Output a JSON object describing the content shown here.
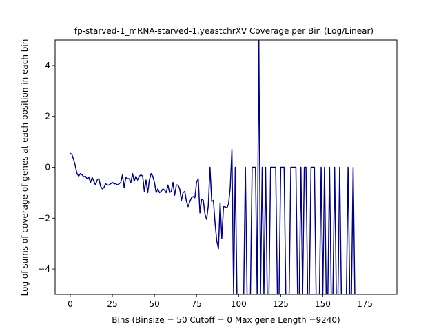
{
  "chart_data": {
    "type": "line",
    "title": "fp-starved-1_mRNA-starved-1.yeastchrXV Coverage per Bin (Log/Linear)",
    "xlabel": "Bins  (Binsize = 50 Cutoff = 0 Max gene Length =9240)",
    "ylabel": "Log of sums of coverage of genes at each position in each bin",
    "xlim": [
      -9,
      194
    ],
    "ylim": [
      -5,
      5
    ],
    "xticks": [
      0,
      25,
      50,
      75,
      100,
      125,
      150,
      175
    ],
    "yticks": [
      -4,
      -2,
      0,
      2,
      4
    ],
    "grid": false,
    "line_color": "#00008b",
    "series": [
      {
        "values": [
          0.55,
          0.5,
          0.3,
          0.05,
          -0.25,
          -0.35,
          -0.25,
          -0.3,
          -0.38,
          -0.35,
          -0.45,
          -0.4,
          -0.6,
          -0.4,
          -0.55,
          -0.7,
          -0.5,
          -0.45,
          -0.75,
          -0.85,
          -0.8,
          -0.65,
          -0.7,
          -0.7,
          -0.65,
          -0.6,
          -0.65,
          -0.65,
          -0.7,
          -0.65,
          -0.6,
          -0.3,
          -0.8,
          -0.4,
          -0.45,
          -0.45,
          -0.6,
          -0.25,
          -0.55,
          -0.35,
          -0.5,
          -0.35,
          -0.3,
          -0.35,
          -0.95,
          -0.5,
          -1.0,
          -0.5,
          -0.25,
          -0.35,
          -0.6,
          -1.0,
          -0.85,
          -1.0,
          -0.95,
          -0.85,
          -0.9,
          -1.0,
          -0.7,
          -1.0,
          -0.95,
          -0.6,
          -1.1,
          -0.7,
          -0.7,
          -0.85,
          -1.3,
          -1.0,
          -0.95,
          -1.35,
          -1.55,
          -1.35,
          -1.2,
          -1.15,
          -1.2,
          -0.6,
          -0.45,
          -1.8,
          -1.25,
          -1.3,
          -1.85,
          -2.05,
          -1.5,
          0.0,
          -1.35,
          -1.3,
          -2.2,
          -2.9,
          -3.2,
          -1.4,
          -2.8,
          -1.55,
          -1.55,
          -1.6,
          -1.45,
          -0.8,
          0.7,
          -5,
          0.0,
          -5,
          -5,
          -5,
          -5,
          -5,
          0.0,
          -5,
          -5,
          -5,
          0.0,
          0.0,
          0.0,
          -5,
          5,
          -5,
          0.0,
          -5,
          0.0,
          -5,
          -5,
          0.0,
          0.0,
          0.0,
          0.0,
          -5,
          -5,
          0.0,
          0.0,
          0.0,
          -5,
          -5,
          -5,
          0.0,
          0.0,
          0.0,
          0.0,
          -5,
          -5,
          0.0,
          -5,
          0.0,
          0.0,
          -5,
          -5,
          0.0,
          0.0,
          0.0,
          -5,
          -5,
          -5,
          0.0,
          -5,
          0.0,
          -5,
          -5,
          0.0,
          -5,
          -5,
          0.0,
          -5,
          -5,
          0.0,
          -5,
          -5,
          -5,
          -5,
          0.0,
          -5,
          -5,
          0.0,
          -5,
          -5,
          -5
        ]
      }
    ]
  }
}
